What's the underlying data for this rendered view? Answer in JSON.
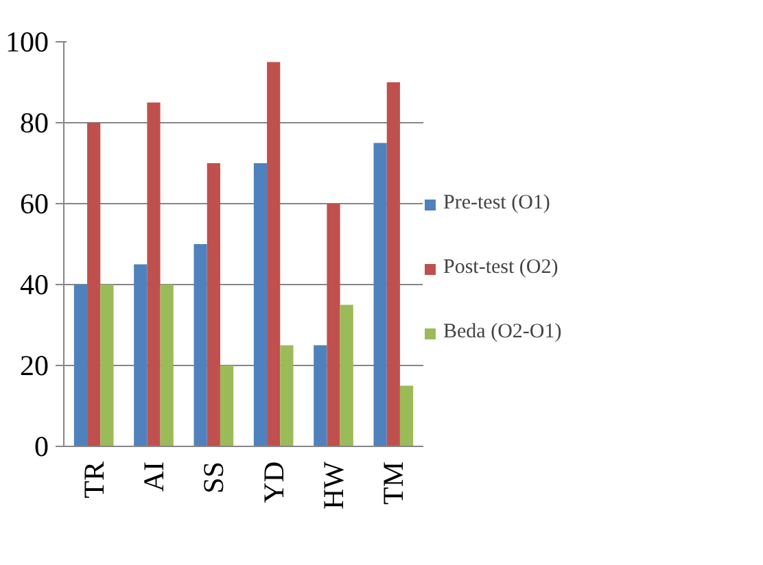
{
  "chart_data": {
    "type": "bar",
    "categories": [
      "TR",
      "AI",
      "SS",
      "YD",
      "HW",
      "TM"
    ],
    "series": [
      {
        "name": "Pre-test (O1)",
        "color": "#4f81bd",
        "values": [
          40,
          45,
          50,
          70,
          25,
          75
        ]
      },
      {
        "name": "Post-test (O2)",
        "color": "#c0504d",
        "values": [
          80,
          85,
          70,
          95,
          60,
          90
        ]
      },
      {
        "name": "Beda (O2-O1)",
        "color": "#9bbb59",
        "values": [
          40,
          40,
          20,
          25,
          35,
          15
        ]
      }
    ],
    "ylim": [
      0,
      100
    ],
    "yticks": [
      0,
      20,
      40,
      60,
      80,
      100
    ],
    "grid": "y",
    "legend": "right"
  }
}
